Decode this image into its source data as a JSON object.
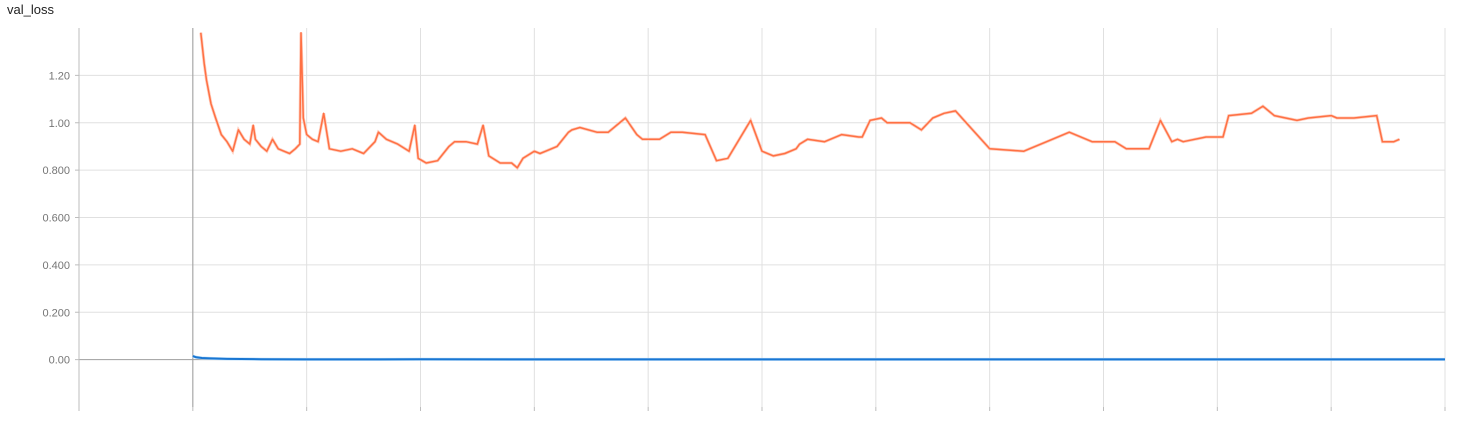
{
  "chart_data": {
    "type": "line",
    "title": "val_loss",
    "xlabel": "",
    "ylabel": "",
    "ylim": [
      -0.2,
      1.4
    ],
    "yticks": [
      {
        "value": 1.2,
        "label": "1.20"
      },
      {
        "value": 1.0,
        "label": "1.00"
      },
      {
        "value": 0.8,
        "label": "0.800"
      },
      {
        "value": 0.6,
        "label": "0.600"
      },
      {
        "value": 0.4,
        "label": "0.400"
      },
      {
        "value": 0.2,
        "label": "0.200"
      },
      {
        "value": 0.0,
        "label": "0.00"
      }
    ],
    "xlim": [
      -1,
      11
    ],
    "xticks": [
      -1,
      0,
      1,
      2,
      3,
      4,
      5,
      6,
      7,
      8,
      9,
      10,
      11
    ],
    "grid": true,
    "legend": "none",
    "series": [
      {
        "color": "#ff7043",
        "raw_color": "#ffccbc",
        "x": [
          0.07,
          0.1,
          0.12,
          0.16,
          0.2,
          0.25,
          0.3,
          0.35,
          0.4,
          0.45,
          0.5,
          0.53,
          0.55,
          0.6,
          0.65,
          0.7,
          0.75,
          0.8,
          0.85,
          0.9,
          0.94,
          0.95,
          0.97,
          1.0,
          1.05,
          1.1,
          1.15,
          1.2,
          1.3,
          1.4,
          1.5,
          1.6,
          1.63,
          1.7,
          1.8,
          1.9,
          1.95,
          1.98,
          2.05,
          2.15,
          2.25,
          2.3,
          2.4,
          2.5,
          2.55,
          2.6,
          2.7,
          2.8,
          2.85,
          2.9,
          3.0,
          3.05,
          3.1,
          3.2,
          3.3,
          3.33,
          3.4,
          3.55,
          3.65,
          3.8,
          3.9,
          3.95,
          4.0,
          4.1,
          4.2,
          4.3,
          4.5,
          4.6,
          4.7,
          4.9,
          5.0,
          5.1,
          5.2,
          5.3,
          5.33,
          5.4,
          5.55,
          5.7,
          5.85,
          5.88,
          5.95,
          6.05,
          6.1,
          6.3,
          6.4,
          6.5,
          6.6,
          6.7,
          7.0,
          7.3,
          7.35,
          7.5,
          7.7,
          7.9,
          8.05,
          8.1,
          8.2,
          8.4,
          8.5,
          8.6,
          8.65,
          8.7,
          8.9,
          9.05,
          9.1,
          9.3,
          9.4,
          9.5,
          9.6,
          9.7,
          9.8,
          10.0,
          10.05,
          10.2,
          10.4,
          10.45,
          10.5,
          10.55,
          10.6
        ],
        "y": [
          1.38,
          1.25,
          1.18,
          1.08,
          1.02,
          0.95,
          0.92,
          0.88,
          0.97,
          0.93,
          0.91,
          0.99,
          0.93,
          0.9,
          0.88,
          0.93,
          0.89,
          0.88,
          0.87,
          0.89,
          0.91,
          1.38,
          1.02,
          0.95,
          0.93,
          0.92,
          1.04,
          0.89,
          0.88,
          0.89,
          0.87,
          0.92,
          0.96,
          0.93,
          0.91,
          0.88,
          0.99,
          0.85,
          0.83,
          0.84,
          0.9,
          0.92,
          0.92,
          0.91,
          0.99,
          0.86,
          0.83,
          0.83,
          0.81,
          0.85,
          0.88,
          0.87,
          0.88,
          0.9,
          0.96,
          0.97,
          0.98,
          0.96,
          0.96,
          1.02,
          0.95,
          0.93,
          0.93,
          0.93,
          0.96,
          0.96,
          0.95,
          0.84,
          0.85,
          1.01,
          0.88,
          0.86,
          0.87,
          0.89,
          0.91,
          0.93,
          0.92,
          0.95,
          0.94,
          0.94,
          1.01,
          1.02,
          1.0,
          1.0,
          0.97,
          1.02,
          1.04,
          1.05,
          0.89,
          0.88,
          0.89,
          0.92,
          0.96,
          0.92,
          0.92,
          0.92,
          0.89,
          0.89,
          1.01,
          0.92,
          0.93,
          0.92,
          0.94,
          0.94,
          1.03,
          1.04,
          1.07,
          1.03,
          1.02,
          1.01,
          1.02,
          1.03,
          1.02,
          1.02,
          1.03,
          0.92,
          0.92,
          0.92,
          0.93
        ]
      },
      {
        "color": "#1976d2",
        "raw_color": "#bbdefb",
        "x": [
          0.0,
          0.03,
          0.08,
          0.15,
          0.3,
          0.6,
          1.0,
          2.0,
          3.0,
          4.0,
          5.0,
          6.0,
          7.0,
          8.0,
          9.0,
          10.0,
          10.5,
          11.0
        ],
        "y": [
          0.015,
          0.01,
          0.007,
          0.005,
          0.003,
          0.002,
          0.001,
          0.0015,
          0.001,
          0.001,
          0.001,
          0.001,
          0.001,
          0.001,
          0.001,
          0.001,
          0.001,
          0.001
        ]
      }
    ]
  }
}
